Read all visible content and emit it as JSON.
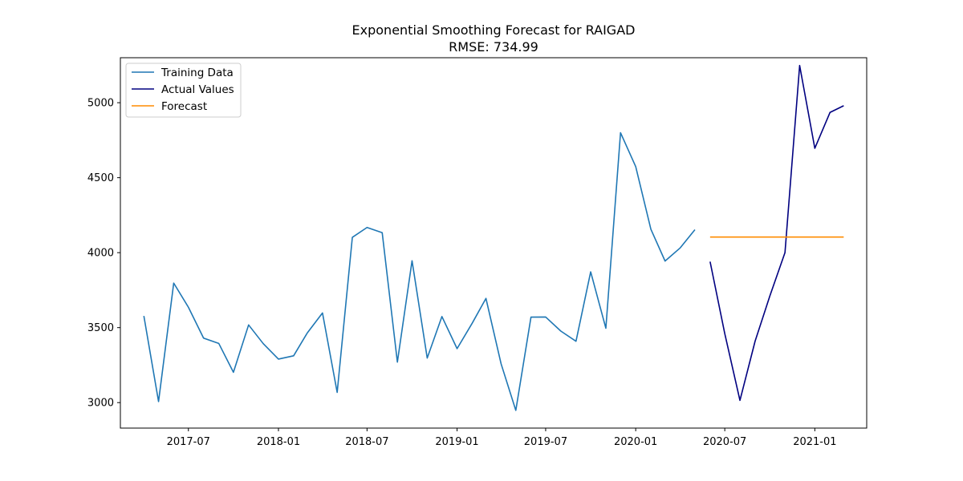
{
  "chart_data": {
    "type": "line",
    "title": "Exponential Smoothing Forecast for RAIGAD",
    "subtitle": "RMSE: 734.99",
    "xlabel": "",
    "ylabel": "",
    "x_type": "date",
    "xlim": [
      "2017-02-12",
      "2021-04-17"
    ],
    "ylim": [
      2830,
      5300
    ],
    "x_ticks": [
      {
        "date": "2017-07-01",
        "label": "2017-07"
      },
      {
        "date": "2018-01-01",
        "label": "2018-01"
      },
      {
        "date": "2018-07-01",
        "label": "2018-07"
      },
      {
        "date": "2019-01-01",
        "label": "2019-01"
      },
      {
        "date": "2019-07-01",
        "label": "2019-07"
      },
      {
        "date": "2020-01-01",
        "label": "2020-01"
      },
      {
        "date": "2020-07-01",
        "label": "2020-07"
      },
      {
        "date": "2021-01-01",
        "label": "2021-01"
      }
    ],
    "y_ticks": [
      3000,
      3500,
      4000,
      4500,
      5000
    ],
    "grid": false,
    "legend_position": "top-left",
    "series": [
      {
        "name": "Training Data",
        "color": "#1f77b4",
        "points": [
          [
            "2017-04-01",
            3578
          ],
          [
            "2017-05-01",
            3007
          ],
          [
            "2017-06-01",
            3797
          ],
          [
            "2017-07-01",
            3636
          ],
          [
            "2017-08-01",
            3430
          ],
          [
            "2017-09-01",
            3395
          ],
          [
            "2017-10-01",
            3202
          ],
          [
            "2017-11-01",
            3518
          ],
          [
            "2017-12-01",
            3393
          ],
          [
            "2018-01-01",
            3290
          ],
          [
            "2018-02-01",
            3312
          ],
          [
            "2018-03-01",
            3465
          ],
          [
            "2018-04-01",
            3598
          ],
          [
            "2018-05-01",
            3068
          ],
          [
            "2018-06-01",
            4102
          ],
          [
            "2018-07-01",
            4168
          ],
          [
            "2018-08-01",
            4133
          ],
          [
            "2018-09-01",
            3270
          ],
          [
            "2018-10-01",
            3946
          ],
          [
            "2018-11-01",
            3297
          ],
          [
            "2018-12-01",
            3574
          ],
          [
            "2019-01-01",
            3360
          ],
          [
            "2019-02-01",
            3530
          ],
          [
            "2019-03-01",
            3695
          ],
          [
            "2019-04-01",
            3258
          ],
          [
            "2019-05-01",
            2948
          ],
          [
            "2019-06-01",
            3570
          ],
          [
            "2019-07-01",
            3571
          ],
          [
            "2019-08-01",
            3477
          ],
          [
            "2019-09-01",
            3409
          ],
          [
            "2019-10-01",
            3872
          ],
          [
            "2019-11-01",
            3496
          ],
          [
            "2019-12-01",
            4800
          ],
          [
            "2020-01-01",
            4574
          ],
          [
            "2020-02-01",
            4156
          ],
          [
            "2020-03-01",
            3944
          ],
          [
            "2020-04-01",
            4032
          ],
          [
            "2020-05-01",
            4153
          ]
        ]
      },
      {
        "name": "Actual Values",
        "color": "#000080",
        "points": [
          [
            "2020-06-01",
            3940
          ],
          [
            "2020-07-01",
            3460
          ],
          [
            "2020-08-01",
            3015
          ],
          [
            "2020-09-01",
            3410
          ],
          [
            "2020-10-01",
            3710
          ],
          [
            "2020-11-01",
            4000
          ],
          [
            "2020-12-01",
            5248
          ],
          [
            "2021-01-01",
            4696
          ],
          [
            "2021-02-01",
            4935
          ],
          [
            "2021-03-01",
            4980
          ]
        ]
      },
      {
        "name": "Forecast",
        "color": "#ff8c00",
        "points": [
          [
            "2020-06-01",
            4104
          ],
          [
            "2020-07-01",
            4104
          ],
          [
            "2020-08-01",
            4104
          ],
          [
            "2020-09-01",
            4104
          ],
          [
            "2020-10-01",
            4104
          ],
          [
            "2020-11-01",
            4104
          ],
          [
            "2020-12-01",
            4104
          ],
          [
            "2021-01-01",
            4104
          ],
          [
            "2021-02-01",
            4104
          ],
          [
            "2021-03-01",
            4104
          ]
        ]
      }
    ]
  }
}
